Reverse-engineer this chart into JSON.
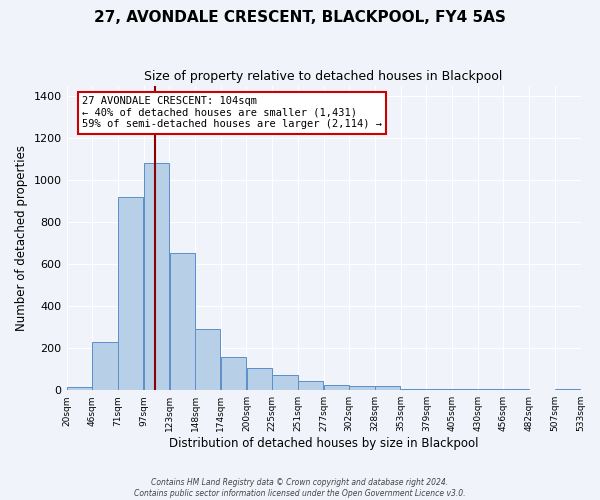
{
  "title": "27, AVONDALE CRESCENT, BLACKPOOL, FY4 5AS",
  "subtitle": "Size of property relative to detached houses in Blackpool",
  "xlabel": "Distribution of detached houses by size in Blackpool",
  "ylabel": "Number of detached properties",
  "bar_values": [
    15,
    230,
    920,
    1080,
    655,
    290,
    160,
    108,
    72,
    42,
    25,
    18,
    18,
    5,
    5,
    5,
    5,
    5,
    0,
    5
  ],
  "bin_left_edges": [
    7,
    33,
    59,
    85,
    111,
    137,
    163,
    189,
    215,
    241,
    267,
    293,
    319,
    345,
    371,
    397,
    423,
    449,
    475,
    501
  ],
  "bin_width": 26,
  "tick_positions": [
    7,
    33,
    59,
    85,
    111,
    137,
    163,
    189,
    215,
    241,
    267,
    293,
    319,
    345,
    371,
    397,
    423,
    449,
    475,
    501,
    527
  ],
  "tick_labels": [
    "20sqm",
    "46sqm",
    "71sqm",
    "97sqm",
    "123sqm",
    "148sqm",
    "174sqm",
    "200sqm",
    "225sqm",
    "251sqm",
    "277sqm",
    "302sqm",
    "328sqm",
    "353sqm",
    "379sqm",
    "405sqm",
    "430sqm",
    "456sqm",
    "482sqm",
    "507sqm",
    "533sqm"
  ],
  "bar_color": "#b8cfe8",
  "bar_edge_color": "#5b8fc9",
  "vline_x": 97,
  "vline_color": "#8b0000",
  "annotation_text": "27 AVONDALE CRESCENT: 104sqm\n← 40% of detached houses are smaller (1,431)\n59% of semi-detached houses are larger (2,114) →",
  "annotation_box_color": "#ffffff",
  "annotation_box_edge_color": "#cc0000",
  "xlim": [
    7,
    527
  ],
  "ylim": [
    0,
    1450
  ],
  "yticks": [
    0,
    200,
    400,
    600,
    800,
    1000,
    1200,
    1400
  ],
  "footer_line1": "Contains HM Land Registry data © Crown copyright and database right 2024.",
  "footer_line2": "Contains public sector information licensed under the Open Government Licence v3.0.",
  "background_color": "#f0f4fa",
  "grid_color": "#ffffff"
}
